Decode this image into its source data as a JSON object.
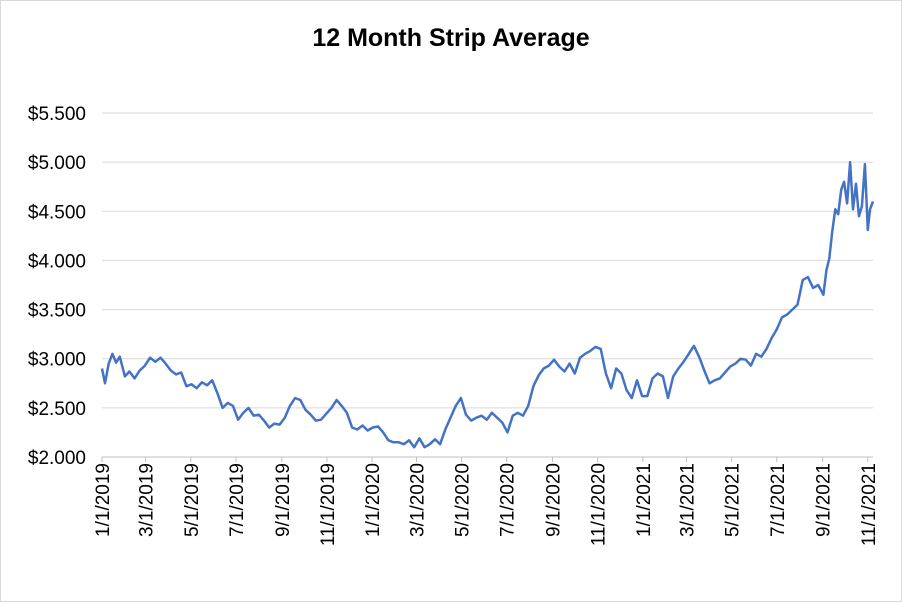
{
  "chart_data": {
    "type": "line",
    "title": "12 Month Strip Average",
    "xlabel": "",
    "ylabel": "",
    "ylim": [
      2.0,
      5.5
    ],
    "xlim": [
      "2019-01-01",
      "2021-11-08"
    ],
    "grid": "horizontal",
    "legend": "none",
    "y_ticks": [
      "$2.000",
      "$2.500",
      "$3.000",
      "$3.500",
      "$4.000",
      "$4.500",
      "$5.000",
      "$5.500"
    ],
    "y_tick_values": [
      2.0,
      2.5,
      3.0,
      3.5,
      4.0,
      4.5,
      5.0,
      5.5
    ],
    "x_ticks": [
      "1/1/2019",
      "3/1/2019",
      "5/1/2019",
      "7/1/2019",
      "9/1/2019",
      "11/1/2019",
      "1/1/2020",
      "3/1/2020",
      "5/1/2020",
      "7/1/2020",
      "9/1/2020",
      "11/1/2020",
      "1/1/2021",
      "3/1/2021",
      "5/1/2021",
      "7/1/2021",
      "9/1/2021",
      "11/1/2021"
    ],
    "x_tick_dates": [
      "2019-01-01",
      "2019-03-01",
      "2019-05-01",
      "2019-07-01",
      "2019-09-01",
      "2019-11-01",
      "2020-01-01",
      "2020-03-01",
      "2020-05-01",
      "2020-07-01",
      "2020-09-01",
      "2020-11-01",
      "2021-01-01",
      "2021-03-01",
      "2021-05-01",
      "2021-07-01",
      "2021-09-01",
      "2021-11-01"
    ],
    "series": [
      {
        "color": "#4472c4",
        "x": [
          "2019-01-01",
          "2019-01-05",
          "2019-01-10",
          "2019-01-15",
          "2019-01-20",
          "2019-01-25",
          "2019-02-01",
          "2019-02-07",
          "2019-02-14",
          "2019-02-21",
          "2019-02-28",
          "2019-03-07",
          "2019-03-14",
          "2019-03-21",
          "2019-03-28",
          "2019-04-04",
          "2019-04-11",
          "2019-04-18",
          "2019-04-25",
          "2019-05-02",
          "2019-05-09",
          "2019-05-16",
          "2019-05-23",
          "2019-05-30",
          "2019-06-06",
          "2019-06-13",
          "2019-06-20",
          "2019-06-27",
          "2019-07-04",
          "2019-07-11",
          "2019-07-18",
          "2019-07-25",
          "2019-08-01",
          "2019-08-08",
          "2019-08-15",
          "2019-08-22",
          "2019-08-29",
          "2019-09-05",
          "2019-09-12",
          "2019-09-19",
          "2019-09-26",
          "2019-10-03",
          "2019-10-10",
          "2019-10-17",
          "2019-10-24",
          "2019-10-31",
          "2019-11-07",
          "2019-11-14",
          "2019-11-21",
          "2019-11-28",
          "2019-12-05",
          "2019-12-12",
          "2019-12-19",
          "2019-12-26",
          "2020-01-02",
          "2020-01-09",
          "2020-01-16",
          "2020-01-23",
          "2020-01-30",
          "2020-02-06",
          "2020-02-13",
          "2020-02-20",
          "2020-02-27",
          "2020-03-05",
          "2020-03-12",
          "2020-03-19",
          "2020-03-26",
          "2020-04-02",
          "2020-04-09",
          "2020-04-16",
          "2020-04-23",
          "2020-04-30",
          "2020-05-07",
          "2020-05-14",
          "2020-05-21",
          "2020-05-28",
          "2020-06-04",
          "2020-06-11",
          "2020-06-18",
          "2020-06-25",
          "2020-07-02",
          "2020-07-09",
          "2020-07-16",
          "2020-07-23",
          "2020-07-30",
          "2020-08-06",
          "2020-08-13",
          "2020-08-20",
          "2020-08-27",
          "2020-09-03",
          "2020-09-10",
          "2020-09-17",
          "2020-09-24",
          "2020-10-01",
          "2020-10-08",
          "2020-10-15",
          "2020-10-22",
          "2020-10-29",
          "2020-11-05",
          "2020-11-12",
          "2020-11-19",
          "2020-11-26",
          "2020-12-03",
          "2020-12-10",
          "2020-12-17",
          "2020-12-24",
          "2020-12-31",
          "2021-01-07",
          "2021-01-14",
          "2021-01-21",
          "2021-01-28",
          "2021-02-04",
          "2021-02-11",
          "2021-02-18",
          "2021-02-25",
          "2021-03-04",
          "2021-03-11",
          "2021-03-18",
          "2021-03-25",
          "2021-04-01",
          "2021-04-08",
          "2021-04-15",
          "2021-04-22",
          "2021-04-29",
          "2021-05-06",
          "2021-05-13",
          "2021-05-20",
          "2021-05-27",
          "2021-06-03",
          "2021-06-10",
          "2021-06-17",
          "2021-06-24",
          "2021-07-01",
          "2021-07-08",
          "2021-07-15",
          "2021-07-22",
          "2021-07-29",
          "2021-08-05",
          "2021-08-12",
          "2021-08-19",
          "2021-08-26",
          "2021-09-02",
          "2021-09-06",
          "2021-09-10",
          "2021-09-14",
          "2021-09-18",
          "2021-09-22",
          "2021-09-26",
          "2021-09-30",
          "2021-10-04",
          "2021-10-08",
          "2021-10-12",
          "2021-10-16",
          "2021-10-20",
          "2021-10-24",
          "2021-10-28",
          "2021-11-01",
          "2021-11-04",
          "2021-11-08"
        ],
        "y": [
          2.9,
          2.75,
          2.95,
          3.05,
          2.96,
          3.02,
          2.82,
          2.87,
          2.8,
          2.88,
          2.93,
          3.01,
          2.97,
          3.01,
          2.95,
          2.88,
          2.84,
          2.86,
          2.72,
          2.74,
          2.7,
          2.76,
          2.73,
          2.78,
          2.65,
          2.5,
          2.55,
          2.52,
          2.38,
          2.45,
          2.5,
          2.42,
          2.43,
          2.37,
          2.3,
          2.34,
          2.33,
          2.4,
          2.52,
          2.6,
          2.58,
          2.48,
          2.43,
          2.37,
          2.38,
          2.44,
          2.5,
          2.58,
          2.52,
          2.45,
          2.3,
          2.28,
          2.32,
          2.27,
          2.3,
          2.31,
          2.25,
          2.17,
          2.15,
          2.15,
          2.13,
          2.17,
          2.1,
          2.19,
          2.1,
          2.13,
          2.18,
          2.13,
          2.28,
          2.4,
          2.52,
          2.6,
          2.43,
          2.37,
          2.4,
          2.42,
          2.38,
          2.45,
          2.4,
          2.35,
          2.25,
          2.42,
          2.45,
          2.42,
          2.52,
          2.72,
          2.83,
          2.9,
          2.93,
          2.99,
          2.92,
          2.87,
          2.95,
          2.85,
          3.01,
          3.05,
          3.08,
          3.12,
          3.1,
          2.85,
          2.7,
          2.9,
          2.85,
          2.68,
          2.6,
          2.78,
          2.62,
          2.62,
          2.8,
          2.85,
          2.82,
          2.6,
          2.82,
          2.9,
          2.97,
          3.05,
          3.13,
          3.02,
          2.88,
          2.75,
          2.78,
          2.8,
          2.86,
          2.92,
          2.95,
          3.0,
          2.99,
          2.93,
          3.05,
          3.02,
          3.1,
          3.21,
          3.3,
          3.42,
          3.45,
          3.5,
          3.55,
          3.8,
          3.83,
          3.72,
          3.75,
          3.65,
          3.9,
          4.02,
          4.3,
          4.52,
          4.47,
          4.72,
          4.8,
          4.58,
          5.0,
          4.52,
          4.78,
          4.45,
          4.55,
          4.98,
          4.31,
          4.52,
          4.6
        ]
      }
    ]
  }
}
